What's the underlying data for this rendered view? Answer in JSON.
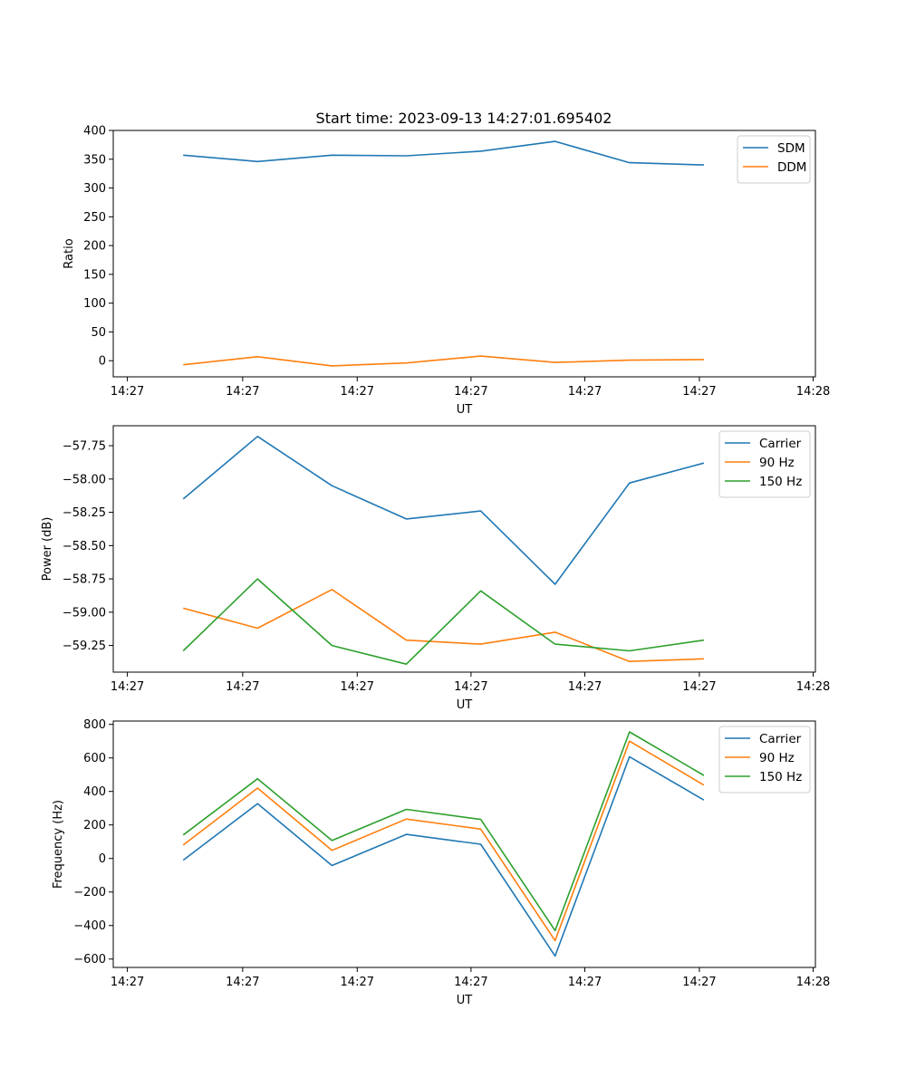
{
  "figure": {
    "title": "Start time: 2023-09-13 14:27:01.695402"
  },
  "chart_data": [
    {
      "type": "line",
      "title": "Start time: 2023-09-13 14:27:01.695402",
      "xlabel": "UT",
      "ylabel": "Ratio",
      "xlim": [
        -0.94,
        8.5
      ],
      "ylim": [
        -28,
        400
      ],
      "x_ticks": [
        {
          "value": -0.75,
          "label": "14:27"
        },
        {
          "value": 0.8,
          "label": "14:27"
        },
        {
          "value": 2.34,
          "label": "14:27"
        },
        {
          "value": 3.87,
          "label": "14:27"
        },
        {
          "value": 5.4,
          "label": "14:27"
        },
        {
          "value": 6.94,
          "label": "14:27"
        },
        {
          "value": 8.47,
          "label": "14:28"
        }
      ],
      "y_ticks": [
        0,
        50,
        100,
        150,
        200,
        250,
        300,
        350,
        400
      ],
      "x": [
        0,
        1,
        2,
        3,
        4,
        5,
        6,
        7
      ],
      "legend_position": "upper right",
      "series": [
        {
          "name": "SDM",
          "color": "#1f77b4",
          "values": [
            357,
            346,
            357,
            356,
            364,
            381,
            344,
            340
          ]
        },
        {
          "name": "DDM",
          "color": "#ff7f0e",
          "values": [
            -7,
            7,
            -9,
            -4,
            8,
            -3,
            1,
            2
          ]
        }
      ]
    },
    {
      "type": "line",
      "xlabel": "UT",
      "ylabel": "Power (dB)",
      "xlim": [
        -0.94,
        8.5
      ],
      "ylim": [
        -59.45,
        -57.6
      ],
      "x_ticks": [
        {
          "value": -0.75,
          "label": "14:27"
        },
        {
          "value": 0.8,
          "label": "14:27"
        },
        {
          "value": 2.34,
          "label": "14:27"
        },
        {
          "value": 3.87,
          "label": "14:27"
        },
        {
          "value": 5.4,
          "label": "14:27"
        },
        {
          "value": 6.94,
          "label": "14:27"
        },
        {
          "value": 8.47,
          "label": "14:28"
        }
      ],
      "y_ticks": [
        {
          "value": -57.75,
          "label": "−57.75"
        },
        {
          "value": -58.0,
          "label": "−58.00"
        },
        {
          "value": -58.25,
          "label": "−58.25"
        },
        {
          "value": -58.5,
          "label": "−58.50"
        },
        {
          "value": -58.75,
          "label": "−58.75"
        },
        {
          "value": -59.0,
          "label": "−59.00"
        },
        {
          "value": -59.25,
          "label": "−59.25"
        }
      ],
      "x": [
        0,
        1,
        2,
        3,
        4,
        5,
        6,
        7
      ],
      "legend_position": "upper right",
      "series": [
        {
          "name": "Carrier",
          "color": "#1f77b4",
          "values": [
            -58.15,
            -57.68,
            -58.05,
            -58.3,
            -58.24,
            -58.79,
            -58.03,
            -57.88
          ]
        },
        {
          "name": "90 Hz",
          "color": "#ff7f0e",
          "values": [
            -58.97,
            -59.12,
            -58.83,
            -59.21,
            -59.24,
            -59.15,
            -59.37,
            -59.35
          ]
        },
        {
          "name": "150 Hz",
          "color": "#2ca02c",
          "values": [
            -59.29,
            -58.75,
            -59.25,
            -59.39,
            -58.84,
            -59.24,
            -59.29,
            -59.21
          ]
        }
      ]
    },
    {
      "type": "line",
      "xlabel": "UT",
      "ylabel": "Frequency (Hz)",
      "xlim": [
        -0.94,
        8.5
      ],
      "ylim": [
        -650,
        820
      ],
      "x_ticks": [
        {
          "value": -0.75,
          "label": "14:27"
        },
        {
          "value": 0.8,
          "label": "14:27"
        },
        {
          "value": 2.34,
          "label": "14:27"
        },
        {
          "value": 3.87,
          "label": "14:27"
        },
        {
          "value": 5.4,
          "label": "14:27"
        },
        {
          "value": 6.94,
          "label": "14:27"
        },
        {
          "value": 8.47,
          "label": "14:28"
        }
      ],
      "y_ticks": [
        {
          "value": 800,
          "label": "800"
        },
        {
          "value": 600,
          "label": "600"
        },
        {
          "value": 400,
          "label": "400"
        },
        {
          "value": 200,
          "label": "200"
        },
        {
          "value": 0,
          "label": "0"
        },
        {
          "value": -200,
          "label": "−200"
        },
        {
          "value": -400,
          "label": "−400"
        },
        {
          "value": -600,
          "label": "−600"
        }
      ],
      "x": [
        0,
        1,
        2,
        3,
        4,
        5,
        6,
        7
      ],
      "legend_position": "upper right",
      "series": [
        {
          "name": "Carrier",
          "color": "#1f77b4",
          "values": [
            -10,
            327,
            -42,
            144,
            85,
            -582,
            607,
            349
          ]
        },
        {
          "name": "90 Hz",
          "color": "#ff7f0e",
          "values": [
            80,
            420,
            48,
            235,
            175,
            -490,
            700,
            438
          ]
        },
        {
          "name": "150 Hz",
          "color": "#2ca02c",
          "values": [
            140,
            476,
            107,
            293,
            233,
            -430,
            755,
            496
          ]
        }
      ]
    }
  ]
}
